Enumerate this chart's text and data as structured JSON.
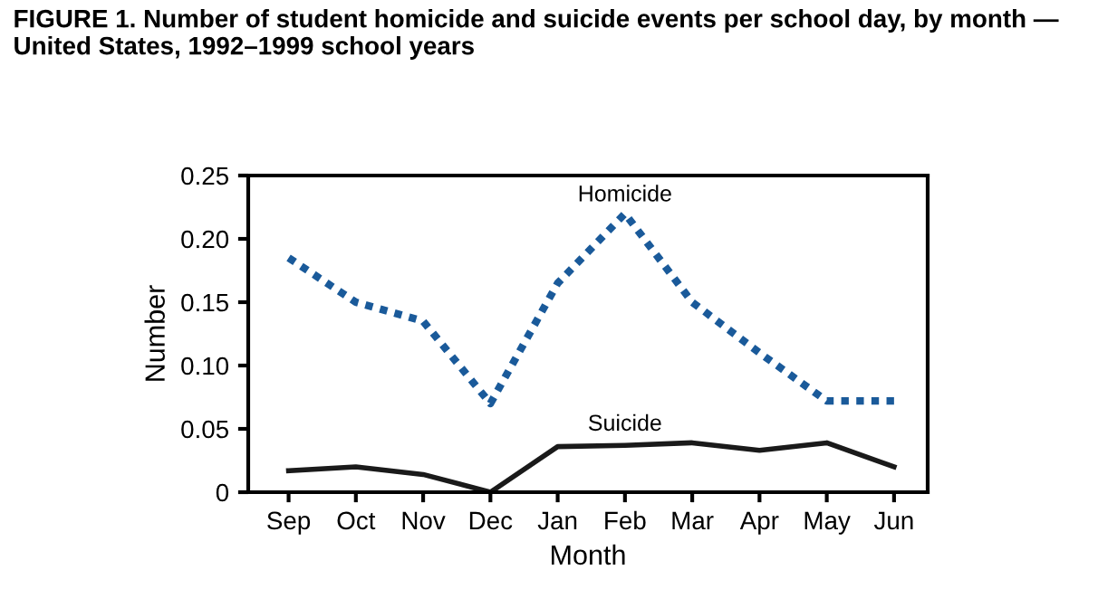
{
  "chart_data": {
    "type": "line",
    "title": "FIGURE 1. Number of student homicide and suicide events per school day, by month — United States, 1992–1999 school years",
    "xlabel": "Month",
    "ylabel": "Number",
    "categories": [
      "Sep",
      "Oct",
      "Nov",
      "Dec",
      "Jan",
      "Feb",
      "Mar",
      "Apr",
      "May",
      "Jun"
    ],
    "series": [
      {
        "name": "Homicide",
        "color": "#1a5a9a",
        "line_style": "dotted",
        "values": [
          0.185,
          0.15,
          0.135,
          0.07,
          0.165,
          0.22,
          0.15,
          0.11,
          0.072,
          0.072
        ]
      },
      {
        "name": "Suicide",
        "color": "#1a1a1a",
        "line_style": "solid",
        "values": [
          0.017,
          0.02,
          0.014,
          0.0,
          0.036,
          0.037,
          0.039,
          0.033,
          0.039,
          0.02
        ]
      }
    ],
    "ylim": [
      0,
      0.25
    ],
    "yticks": [
      {
        "value": 0,
        "label": "0"
      },
      {
        "value": 0.05,
        "label": "0.05"
      },
      {
        "value": 0.1,
        "label": "0.10"
      },
      {
        "value": 0.15,
        "label": "0.15"
      },
      {
        "value": 0.2,
        "label": "0.20"
      },
      {
        "value": 0.25,
        "label": "0.25"
      }
    ],
    "grid": false,
    "legend": false
  }
}
